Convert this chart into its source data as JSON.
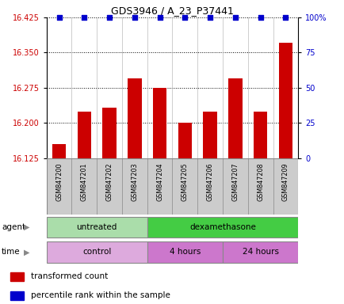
{
  "title": "GDS3946 / A_23_P37441",
  "samples": [
    "GSM847200",
    "GSM847201",
    "GSM847202",
    "GSM847203",
    "GSM847204",
    "GSM847205",
    "GSM847206",
    "GSM847207",
    "GSM847208",
    "GSM847209"
  ],
  "bar_values": [
    16.155,
    16.225,
    16.232,
    16.295,
    16.275,
    16.201,
    16.225,
    16.295,
    16.225,
    16.37
  ],
  "percentile_values": [
    100,
    100,
    100,
    100,
    100,
    100,
    100,
    100,
    100,
    100
  ],
  "ylim_left": [
    16.125,
    16.425
  ],
  "ylim_right": [
    0,
    100
  ],
  "yticks_left": [
    16.125,
    16.2,
    16.275,
    16.35,
    16.425
  ],
  "yticks_right": [
    0,
    25,
    50,
    75,
    100
  ],
  "bar_color": "#cc0000",
  "dot_color": "#0000cc",
  "agent_groups": [
    {
      "label": "untreated",
      "start": 0,
      "end": 4,
      "color": "#aaddaa"
    },
    {
      "label": "dexamethasone",
      "start": 4,
      "end": 10,
      "color": "#44cc44"
    }
  ],
  "time_groups": [
    {
      "label": "control",
      "start": 0,
      "end": 4,
      "color": "#ddaadd"
    },
    {
      "label": "4 hours",
      "start": 4,
      "end": 7,
      "color": "#cc77cc"
    },
    {
      "label": "24 hours",
      "start": 7,
      "end": 10,
      "color": "#cc77cc"
    }
  ],
  "legend_items": [
    {
      "label": "transformed count",
      "color": "#cc0000"
    },
    {
      "label": "percentile rank within the sample",
      "color": "#0000cc"
    }
  ],
  "bar_width": 0.55,
  "dot_size": 15,
  "sample_box_color": "#cccccc",
  "sample_box_edge": "#888888"
}
